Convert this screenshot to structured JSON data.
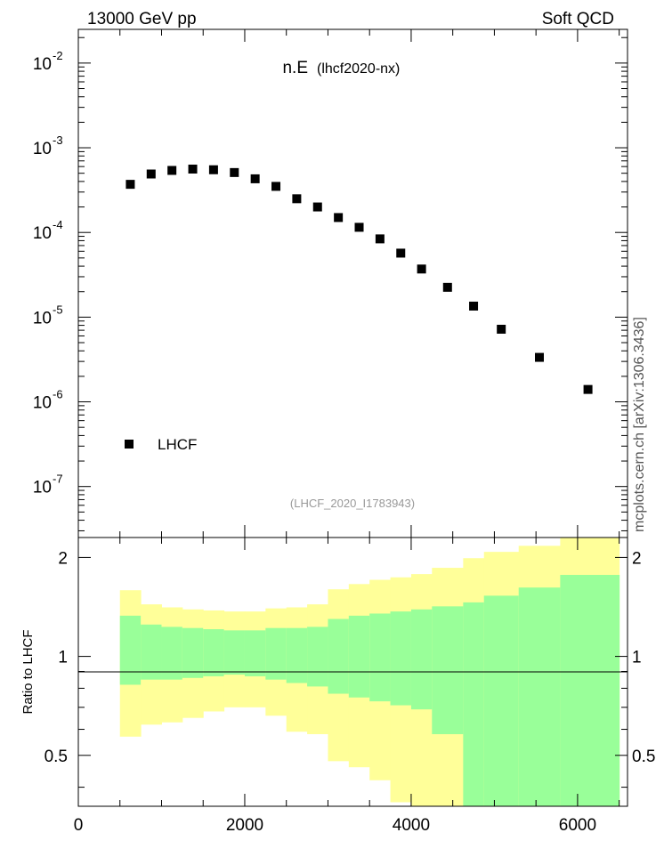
{
  "header": {
    "left": "13000 GeV pp",
    "right": "Soft QCD",
    "side_label": "mcplots.cern.ch [arXiv:1306.3436]"
  },
  "chart_data": [
    {
      "type": "scatter",
      "title": "n.E",
      "title_suffix": "(lhcf2020-nx)",
      "watermark": "(LHCF_2020_I1783943)",
      "y_scale": "log",
      "xlim": [
        0,
        6600
      ],
      "ylim": [
        2.5e-08,
        0.025
      ],
      "y_tick_labels": [
        {
          "value": 0.01,
          "base": "10",
          "exp": "-2"
        },
        {
          "value": 0.001,
          "base": "10",
          "exp": "-3"
        },
        {
          "value": 0.0001,
          "base": "10",
          "exp": "-4"
        },
        {
          "value": 1e-05,
          "base": "10",
          "exp": "-5"
        },
        {
          "value": 1e-06,
          "base": "10",
          "exp": "-6"
        },
        {
          "value": 1e-07,
          "base": "10",
          "exp": "-7"
        }
      ],
      "legend_position": "bottom-left",
      "series": [
        {
          "name": "LHCF",
          "color": "#000000",
          "marker": "square",
          "x": [
            625,
            875,
            1125,
            1375,
            1625,
            1875,
            2125,
            2375,
            2625,
            2875,
            3125,
            3375,
            3625,
            3875,
            4125,
            4437,
            4750,
            5083,
            5541,
            6125
          ],
          "y": [
            0.00037,
            0.00049,
            0.00054,
            0.00056,
            0.00055,
            0.00051,
            0.00043,
            0.00035,
            0.00025,
            0.0002,
            0.00015,
            0.000115,
            8.4e-05,
            5.7e-05,
            3.7e-05,
            2.25e-05,
            1.35e-05,
            7.2e-06,
            3.35e-06,
            1.4e-06
          ]
        }
      ]
    },
    {
      "type": "area",
      "ylabel": "Ratio to LHCF",
      "xlim": [
        0,
        6600
      ],
      "ylim": [
        0.35,
        2.3
      ],
      "x_ticks": [
        0,
        2000,
        4000,
        6000
      ],
      "x_tick_labels": [
        "0",
        "2000",
        "4000",
        "6000"
      ],
      "y_tick_labels": [
        {
          "value": 2,
          "label": "2"
        },
        {
          "value": 1,
          "label": "1"
        },
        {
          "value": 0.5,
          "label": "0.5"
        }
      ],
      "reference_line": 1,
      "band_colors": {
        "outer": "#ffff99",
        "inner": "#99ff99"
      },
      "bins": [
        {
          "x0": 500,
          "x1": 750,
          "outer_lo": 0.57,
          "outer_hi": 1.59,
          "inner_lo": 0.82,
          "inner_hi": 1.33
        },
        {
          "x0": 750,
          "x1": 1000,
          "outer_lo": 0.62,
          "outer_hi": 1.44,
          "inner_lo": 0.85,
          "inner_hi": 1.25
        },
        {
          "x0": 1000,
          "x1": 1250,
          "outer_lo": 0.63,
          "outer_hi": 1.41,
          "inner_lo": 0.85,
          "inner_hi": 1.23
        },
        {
          "x0": 1250,
          "x1": 1500,
          "outer_lo": 0.65,
          "outer_hi": 1.39,
          "inner_lo": 0.86,
          "inner_hi": 1.22
        },
        {
          "x0": 1500,
          "x1": 1750,
          "outer_lo": 0.68,
          "outer_hi": 1.38,
          "inner_lo": 0.87,
          "inner_hi": 1.21
        },
        {
          "x0": 1750,
          "x1": 2000,
          "outer_lo": 0.7,
          "outer_hi": 1.37,
          "inner_lo": 0.88,
          "inner_hi": 1.2
        },
        {
          "x0": 2000,
          "x1": 2250,
          "outer_lo": 0.7,
          "outer_hi": 1.37,
          "inner_lo": 0.87,
          "inner_hi": 1.2
        },
        {
          "x0": 2250,
          "x1": 2500,
          "outer_lo": 0.66,
          "outer_hi": 1.4,
          "inner_lo": 0.85,
          "inner_hi": 1.22
        },
        {
          "x0": 2500,
          "x1": 2750,
          "outer_lo": 0.59,
          "outer_hi": 1.41,
          "inner_lo": 0.83,
          "inner_hi": 1.22
        },
        {
          "x0": 2750,
          "x1": 3000,
          "outer_lo": 0.58,
          "outer_hi": 1.44,
          "inner_lo": 0.81,
          "inner_hi": 1.23
        },
        {
          "x0": 3000,
          "x1": 3250,
          "outer_lo": 0.48,
          "outer_hi": 1.6,
          "inner_lo": 0.77,
          "inner_hi": 1.3
        },
        {
          "x0": 3250,
          "x1": 3500,
          "outer_lo": 0.46,
          "outer_hi": 1.66,
          "inner_lo": 0.75,
          "inner_hi": 1.33
        },
        {
          "x0": 3500,
          "x1": 3750,
          "outer_lo": 0.42,
          "outer_hi": 1.71,
          "inner_lo": 0.73,
          "inner_hi": 1.35
        },
        {
          "x0": 3750,
          "x1": 4000,
          "outer_lo": 0.36,
          "outer_hi": 1.74,
          "inner_lo": 0.71,
          "inner_hi": 1.37
        },
        {
          "x0": 4000,
          "x1": 4250,
          "outer_lo": 0.33,
          "outer_hi": 1.78,
          "inner_lo": 0.69,
          "inner_hi": 1.39
        },
        {
          "x0": 4250,
          "x1": 4625,
          "outer_lo": 0.3,
          "outer_hi": 1.86,
          "inner_lo": 0.58,
          "inner_hi": 1.42
        },
        {
          "x0": 4625,
          "x1": 4875,
          "outer_lo": 0.3,
          "outer_hi": 1.99,
          "inner_lo": 0.3,
          "inner_hi": 1.46
        },
        {
          "x0": 4875,
          "x1": 5292,
          "outer_lo": 0.3,
          "outer_hi": 2.08,
          "inner_lo": 0.3,
          "inner_hi": 1.53
        },
        {
          "x0": 5292,
          "x1": 5791,
          "outer_lo": 0.3,
          "outer_hi": 2.17,
          "inner_lo": 0.3,
          "inner_hi": 1.62
        },
        {
          "x0": 5791,
          "x1": 6500,
          "outer_lo": 0.3,
          "outer_hi": 2.35,
          "inner_lo": 0.3,
          "inner_hi": 1.77
        }
      ]
    }
  ]
}
